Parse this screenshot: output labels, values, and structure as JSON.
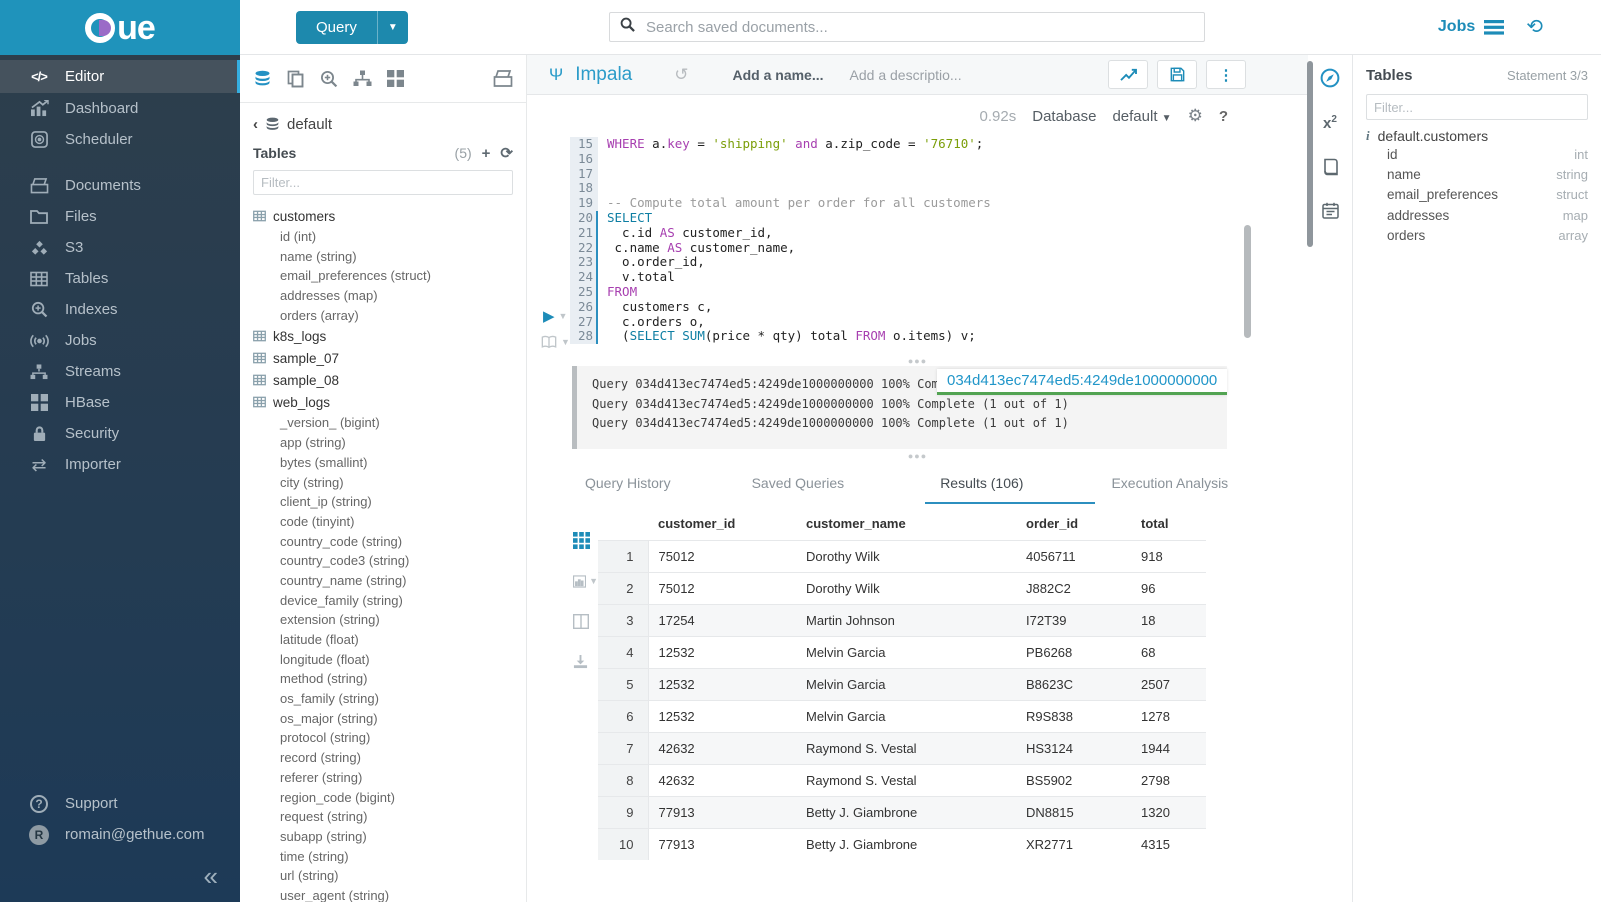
{
  "colors": {
    "brand_blue": "#1f93bb",
    "accent_blue": "#1d8cb8",
    "active_border": "#35aee0",
    "keyword_purple": "#a73fb0",
    "function_teal": "#0e7ea3",
    "string_green": "#7b9e09",
    "overlay_link_blue": "#2196c9",
    "overlay_underline_green": "#52a352"
  },
  "topbar": {
    "logo_text": "ue",
    "query_button": "Query",
    "search_placeholder": "Search saved documents...",
    "jobs_label": "Jobs"
  },
  "sidebar": {
    "items": [
      {
        "label": "Editor",
        "icon": "code",
        "active": true
      },
      {
        "label": "Dashboard",
        "icon": "dashboard"
      },
      {
        "label": "Scheduler",
        "icon": "scheduler"
      },
      {
        "label": "Documents",
        "icon": "documents",
        "gap_before": true
      },
      {
        "label": "Files",
        "icon": "files"
      },
      {
        "label": "S3",
        "icon": "s3"
      },
      {
        "label": "Tables",
        "icon": "tables"
      },
      {
        "label": "Indexes",
        "icon": "indexes"
      },
      {
        "label": "Jobs",
        "icon": "jobs"
      },
      {
        "label": "Streams",
        "icon": "streams"
      },
      {
        "label": "HBase",
        "icon": "hbase"
      },
      {
        "label": "Security",
        "icon": "security"
      },
      {
        "label": "Importer",
        "icon": "importer"
      }
    ],
    "support_label": "Support",
    "user_email": "romain@gethue.com",
    "collapse_glyph": "«"
  },
  "browser": {
    "breadcrumb": "default",
    "tables_title": "Tables",
    "tables_count": "(5)",
    "filter_placeholder": "Filter...",
    "tables": [
      {
        "name": "customers",
        "columns": [
          "id (int)",
          "name (string)",
          "email_preferences (struct)",
          "addresses (map)",
          "orders (array)"
        ]
      },
      {
        "name": "k8s_logs",
        "columns": []
      },
      {
        "name": "sample_07",
        "columns": []
      },
      {
        "name": "sample_08",
        "columns": []
      },
      {
        "name": "web_logs",
        "columns": [
          "_version_ (bigint)",
          "app (string)",
          "bytes (smallint)",
          "city (string)",
          "client_ip (string)",
          "code (tinyint)",
          "country_code (string)",
          "country_code3 (string)",
          "country_name (string)",
          "device_family (string)",
          "extension (string)",
          "latitude (float)",
          "longitude (float)",
          "method (string)",
          "os_family (string)",
          "os_major (string)",
          "protocol (string)",
          "record (string)",
          "referer (string)",
          "region_code (bigint)",
          "request (string)",
          "subapp (string)",
          "time (string)",
          "url (string)",
          "user_agent (string)"
        ]
      }
    ]
  },
  "editor": {
    "engine": "Impala",
    "name_placeholder": "Add a name...",
    "desc_placeholder": "Add a descriptio...",
    "exec_time": "0.92s",
    "database_label": "Database",
    "database_value": "default",
    "help_glyph": "?",
    "code_lines": [
      {
        "n": "15",
        "stmt": false,
        "tokens": [
          [
            "k",
            "WHERE"
          ],
          [
            "p",
            " a."
          ],
          [
            "k",
            "key"
          ],
          [
            "p",
            " = "
          ],
          [
            "s",
            "'shipping'"
          ],
          [
            "p",
            " "
          ],
          [
            "k",
            "and"
          ],
          [
            "p",
            " a.zip_code = "
          ],
          [
            "s",
            "'76710'"
          ],
          [
            "p",
            ";"
          ]
        ]
      },
      {
        "n": "16",
        "stmt": false,
        "tokens": []
      },
      {
        "n": "17",
        "stmt": false,
        "tokens": []
      },
      {
        "n": "18",
        "stmt": false,
        "tokens": []
      },
      {
        "n": "19",
        "stmt": false,
        "tokens": [
          [
            "c",
            "-- Compute total amount per order for all customers"
          ]
        ]
      },
      {
        "n": "20",
        "stmt": true,
        "tokens": [
          [
            "f",
            "SELECT"
          ]
        ]
      },
      {
        "n": "21",
        "stmt": true,
        "tokens": [
          [
            "p",
            "  c.id "
          ],
          [
            "k",
            "AS"
          ],
          [
            "p",
            " customer_id,"
          ]
        ]
      },
      {
        "n": "22",
        "stmt": true,
        "tokens": [
          [
            "p",
            " c.name "
          ],
          [
            "k",
            "AS"
          ],
          [
            "p",
            " customer_name,"
          ]
        ]
      },
      {
        "n": "23",
        "stmt": true,
        "tokens": [
          [
            "p",
            "  o.order_id,"
          ]
        ]
      },
      {
        "n": "24",
        "stmt": true,
        "tokens": [
          [
            "p",
            "  v.total"
          ]
        ]
      },
      {
        "n": "25",
        "stmt": true,
        "tokens": [
          [
            "k",
            "FROM"
          ]
        ]
      },
      {
        "n": "26",
        "stmt": true,
        "tokens": [
          [
            "p",
            "  customers c,"
          ]
        ]
      },
      {
        "n": "27",
        "stmt": true,
        "tokens": [
          [
            "p",
            "  c.orders o,"
          ]
        ]
      },
      {
        "n": "28",
        "stmt": true,
        "tokens": [
          [
            "p",
            "  ("
          ],
          [
            "f",
            "SELECT"
          ],
          [
            "p",
            " "
          ],
          [
            "f",
            "SUM"
          ],
          [
            "p",
            "(price * qty) total "
          ],
          [
            "k",
            "FROM"
          ],
          [
            "p",
            " o.items) v;"
          ]
        ]
      }
    ]
  },
  "logs": {
    "lines": [
      "Query 034d413ec7474ed5:4249de1000000000 100% Complete (1 out of 1)",
      "Query 034d413ec7474ed5:4249de1000000000 100% Complete (1 out of 1)",
      "Query 034d413ec7474ed5:4249de1000000000 100% Complete (1 out of 1)"
    ],
    "overlay_text": "034d413ec7474ed5:4249de1000000000"
  },
  "tabs": [
    {
      "label": "Query History",
      "active": false
    },
    {
      "label": "Saved Queries",
      "active": false
    },
    {
      "label": "Results (106)",
      "active": true
    },
    {
      "label": "Execution Analysis",
      "active": false
    }
  ],
  "results": {
    "columns": [
      "",
      "customer_id",
      "customer_name",
      "order_id",
      "total"
    ],
    "rows": [
      [
        "1",
        "75012",
        "Dorothy Wilk",
        "4056711",
        "918"
      ],
      [
        "2",
        "75012",
        "Dorothy Wilk",
        "J882C2",
        "96"
      ],
      [
        "3",
        "17254",
        "Martin Johnson",
        "I72T39",
        "18"
      ],
      [
        "4",
        "12532",
        "Melvin Garcia",
        "PB6268",
        "68"
      ],
      [
        "5",
        "12532",
        "Melvin Garcia",
        "B8623C",
        "2507"
      ],
      [
        "6",
        "12532",
        "Melvin Garcia",
        "R9S838",
        "1278"
      ],
      [
        "7",
        "42632",
        "Raymond S. Vestal",
        "HS3124",
        "1944"
      ],
      [
        "8",
        "42632",
        "Raymond S. Vestal",
        "BS5902",
        "2798"
      ],
      [
        "9",
        "77913",
        "Betty J. Giambrone",
        "DN8815",
        "1320"
      ],
      [
        "10",
        "77913",
        "Betty J. Giambrone",
        "XR2771",
        "4315"
      ]
    ]
  },
  "right_panel": {
    "title": "Tables",
    "statement": "Statement 3/3",
    "filter_placeholder": "Filter...",
    "table_name": "default.customers",
    "columns": [
      {
        "name": "id",
        "type": "int"
      },
      {
        "name": "name",
        "type": "string"
      },
      {
        "name": "email_preferences",
        "type": "struct"
      },
      {
        "name": "addresses",
        "type": "map"
      },
      {
        "name": "orders",
        "type": "array"
      }
    ]
  }
}
